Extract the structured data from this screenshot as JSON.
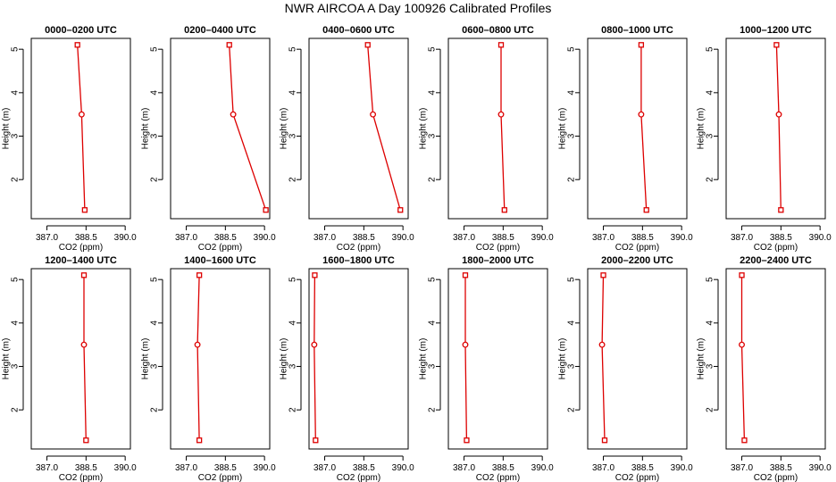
{
  "figure_title": "NWR AIRCOA A  Day 100926  Calibrated Profiles",
  "series_color": "#dd0000",
  "chart_data": {
    "type": "line",
    "orientation": "vertical-profile",
    "xlabel": "CO2 (ppm)",
    "ylabel": "Height (m)",
    "xlim": [
      386.4,
      390.2
    ],
    "ylim": [
      1.1,
      5.25
    ],
    "xticks": [
      387.0,
      388.5,
      390.0
    ],
    "xtick_labels": [
      "387.0",
      "388.5",
      "390.0"
    ],
    "yticks": [
      2,
      3,
      4,
      5
    ],
    "ytick_labels": [
      "2",
      "3",
      "4",
      "5"
    ],
    "marker_shapes": [
      "square",
      "circle",
      "square"
    ],
    "panels": [
      {
        "title": "0000–0200 UTC",
        "x": [
          388.45,
          388.33,
          388.17
        ],
        "y": [
          1.3,
          3.5,
          5.1
        ]
      },
      {
        "title": "0200–0400 UTC",
        "x": [
          390.05,
          388.8,
          388.65
        ],
        "y": [
          1.3,
          3.5,
          5.1
        ]
      },
      {
        "title": "0400–0600 UTC",
        "x": [
          389.9,
          388.85,
          388.65
        ],
        "y": [
          1.3,
          3.5,
          5.1
        ]
      },
      {
        "title": "0600–0800 UTC",
        "x": [
          388.55,
          388.42,
          388.42
        ],
        "y": [
          1.3,
          3.5,
          5.1
        ]
      },
      {
        "title": "0800–1000 UTC",
        "x": [
          388.65,
          388.45,
          388.45
        ],
        "y": [
          1.3,
          3.5,
          5.1
        ]
      },
      {
        "title": "1000–1200 UTC",
        "x": [
          388.5,
          388.42,
          388.33
        ],
        "y": [
          1.3,
          3.5,
          5.1
        ]
      },
      {
        "title": "1200–1400 UTC",
        "x": [
          388.5,
          388.42,
          388.42
        ],
        "y": [
          1.3,
          3.5,
          5.1
        ]
      },
      {
        "title": "1400–1600 UTC",
        "x": [
          387.5,
          387.43,
          387.5
        ],
        "y": [
          1.3,
          3.5,
          5.1
        ]
      },
      {
        "title": "1600–1800 UTC",
        "x": [
          386.65,
          386.6,
          386.62
        ],
        "y": [
          1.3,
          3.5,
          5.1
        ]
      },
      {
        "title": "1800–2000 UTC",
        "x": [
          387.1,
          387.05,
          387.05
        ],
        "y": [
          1.3,
          3.5,
          5.1
        ]
      },
      {
        "title": "2000–2200 UTC",
        "x": [
          387.05,
          386.95,
          387.0
        ],
        "y": [
          1.3,
          3.5,
          5.1
        ]
      },
      {
        "title": "2200–2400 UTC",
        "x": [
          387.1,
          387.0,
          387.0
        ],
        "y": [
          1.3,
          3.5,
          5.1
        ]
      }
    ]
  }
}
